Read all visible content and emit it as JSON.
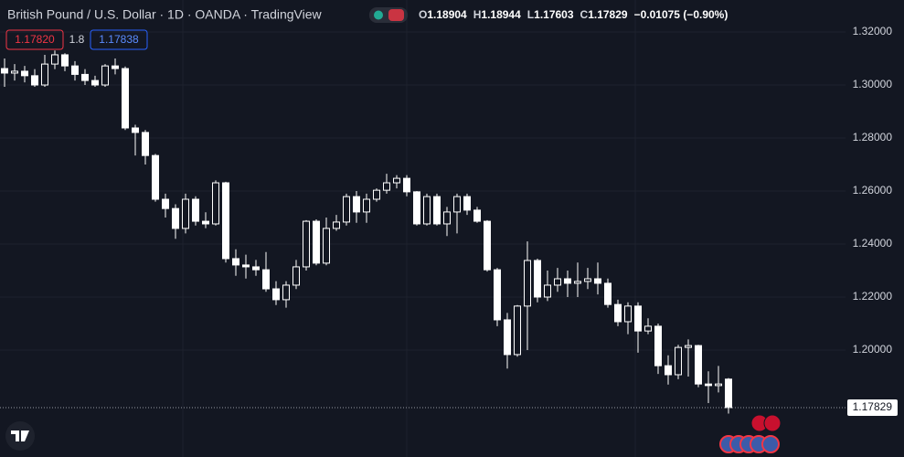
{
  "chart_data": {
    "type": "candlestick",
    "title": "British Pound / U.S. Dollar · 1D · OANDA · TradingView",
    "ohlc_labels": [
      "O",
      "H",
      "L",
      "C"
    ],
    "change": "−0.01075 (−0.90%)",
    "trade": {
      "sell": "1.17820",
      "spread": "1.8",
      "buy": "1.17838"
    },
    "open": [
      1.3062,
      1.3045,
      1.3052,
      1.3035,
      1.3,
      1.3079,
      1.3114,
      1.3072,
      1.304,
      1.3017,
      1.3,
      1.3072,
      1.3062,
      1.2838,
      1.2821,
      1.2734,
      1.2569,
      1.2534,
      1.2459,
      1.2569,
      1.2486,
      1.2476,
      1.2631,
      1.2345,
      1.2321,
      1.2314,
      1.2303,
      1.2231,
      1.219,
      1.2245,
      1.2314,
      1.2486,
      1.2328,
      1.2459,
      1.2483,
      1.2579,
      1.2521,
      1.2569,
      1.2603,
      1.2631,
      1.2648,
      1.2597,
      1.2476,
      1.2579,
      1.2476,
      1.2521,
      1.2579,
      1.2528,
      1.2486,
      1.2303,
      1.2114,
      1.1983,
      1.2166,
      1.2338,
      1.22,
      1.2245,
      1.2269,
      1.2252,
      1.2259,
      1.2269,
      1.2252,
      1.2172,
      1.2107,
      1.2166,
      1.2072,
      1.209,
      1.1941,
      1.1907,
      1.201,
      1.2017,
      1.1872,
      1.1866,
      1.18904
    ],
    "high": [
      1.31,
      1.3079,
      1.3072,
      1.306,
      1.3114,
      1.313,
      1.312,
      1.309,
      1.306,
      1.3035,
      1.3079,
      1.31,
      1.307,
      1.285,
      1.283,
      1.274,
      1.259,
      1.255,
      1.259,
      1.258,
      1.252,
      1.264,
      1.2635,
      1.238,
      1.236,
      1.234,
      1.237,
      1.226,
      1.226,
      1.234,
      1.249,
      1.2493,
      1.25,
      1.251,
      1.259,
      1.26,
      1.259,
      1.261,
      1.2665,
      1.266,
      1.266,
      1.26,
      1.259,
      1.259,
      1.254,
      1.259,
      1.259,
      1.254,
      1.249,
      1.231,
      1.214,
      1.217,
      1.241,
      1.2345,
      1.23,
      1.231,
      1.23,
      1.233,
      1.231,
      1.233,
      1.227,
      1.219,
      1.218,
      1.218,
      1.212,
      1.21,
      1.198,
      1.202,
      1.204,
      1.202,
      1.192,
      1.194,
      1.18944
    ],
    "low": [
      1.2993,
      1.3017,
      1.301,
      1.2993,
      1.2993,
      1.306,
      1.3052,
      1.3017,
      1.3,
      1.2993,
      1.2993,
      1.304,
      1.283,
      1.2734,
      1.27,
      1.256,
      1.25,
      1.242,
      1.244,
      1.247,
      1.246,
      1.247,
      1.233,
      1.228,
      1.227,
      1.228,
      1.222,
      1.217,
      1.216,
      1.223,
      1.23,
      1.232,
      1.232,
      1.245,
      1.247,
      1.248,
      1.248,
      1.256,
      1.259,
      1.261,
      1.258,
      1.247,
      1.247,
      1.247,
      1.243,
      1.244,
      1.251,
      1.248,
      1.2296,
      1.209,
      1.193,
      1.1975,
      1.2,
      1.218,
      1.2185,
      1.222,
      1.22,
      1.22,
      1.223,
      1.221,
      1.216,
      1.209,
      1.206,
      1.199,
      1.206,
      1.191,
      1.187,
      1.189,
      1.19,
      1.186,
      1.18,
      1.184,
      1.17603
    ],
    "close": [
      1.3045,
      1.3052,
      1.3035,
      1.3,
      1.3079,
      1.3114,
      1.3072,
      1.304,
      1.3017,
      1.3,
      1.3072,
      1.3062,
      1.2838,
      1.2821,
      1.2734,
      1.2569,
      1.2534,
      1.2459,
      1.2569,
      1.2486,
      1.2476,
      1.2631,
      1.2345,
      1.2321,
      1.2314,
      1.2303,
      1.2231,
      1.219,
      1.2245,
      1.2314,
      1.2486,
      1.2328,
      1.2459,
      1.2483,
      1.2579,
      1.2521,
      1.2569,
      1.2603,
      1.2631,
      1.2648,
      1.2597,
      1.2476,
      1.2579,
      1.2476,
      1.2521,
      1.2579,
      1.2528,
      1.2486,
      1.2303,
      1.2114,
      1.1983,
      1.2166,
      1.2338,
      1.22,
      1.2245,
      1.2269,
      1.2252,
      1.2259,
      1.2269,
      1.2252,
      1.2172,
      1.2107,
      1.2166,
      1.2072,
      1.209,
      1.1941,
      1.1907,
      1.201,
      1.2017,
      1.1872,
      1.1866,
      1.1872,
      1.17829
    ],
    "color": "#ffffff",
    "ylim": [
      1.15966,
      1.33207
    ],
    "yticks": [
      {
        "value": 1.2,
        "label": "1.20000"
      },
      {
        "value": 1.22,
        "label": "1.22000"
      },
      {
        "value": 1.24,
        "label": "1.24000"
      },
      {
        "value": 1.26,
        "label": "1.26000"
      },
      {
        "value": 1.28,
        "label": "1.28000"
      },
      {
        "value": 1.3,
        "label": "1.30000"
      },
      {
        "value": 1.32,
        "label": "1.32000"
      }
    ],
    "grid": true
  }
}
